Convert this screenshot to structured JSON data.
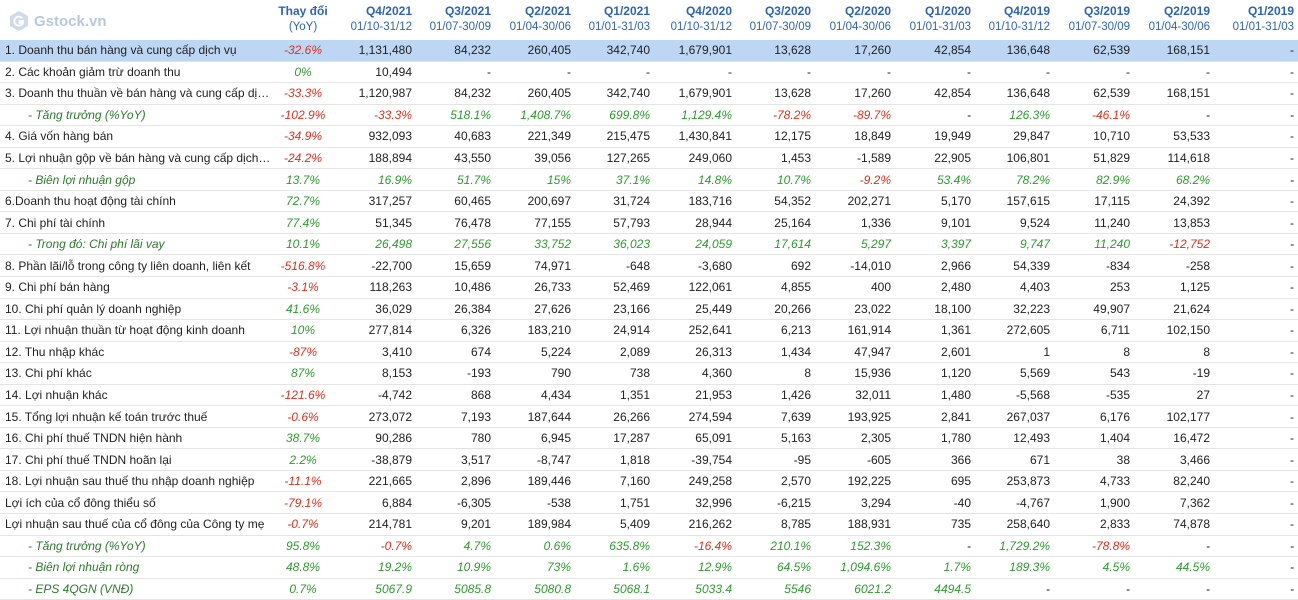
{
  "app": {
    "logo_text": "Gstock.vn"
  },
  "columns": [
    {
      "q": "Thay đổi",
      "d": "(YoY)"
    },
    {
      "q": "Q4/2021",
      "d": "01/10-31/12"
    },
    {
      "q": "Q3/2021",
      "d": "01/07-30/09"
    },
    {
      "q": "Q2/2021",
      "d": "01/04-30/06"
    },
    {
      "q": "Q1/2021",
      "d": "01/01-31/03"
    },
    {
      "q": "Q4/2020",
      "d": "01/10-31/12"
    },
    {
      "q": "Q3/2020",
      "d": "01/07-30/09"
    },
    {
      "q": "Q2/2020",
      "d": "01/04-30/06"
    },
    {
      "q": "Q1/2020",
      "d": "01/01-31/03"
    },
    {
      "q": "Q4/2019",
      "d": "01/10-31/12"
    },
    {
      "q": "Q3/2019",
      "d": "01/07-30/09"
    },
    {
      "q": "Q2/2019",
      "d": "01/04-30/06"
    },
    {
      "q": "Q1/2019",
      "d": "01/01-31/03"
    }
  ],
  "rows": [
    {
      "label": "1. Doanh thu bán hàng và cung cấp dịch vụ",
      "sub": false,
      "selected": true,
      "yoy": "-32.6%",
      "values": [
        "1,131,480",
        "84,232",
        "260,405",
        "342,740",
        "1,679,901",
        "13,628",
        "17,260",
        "42,854",
        "136,648",
        "62,539",
        "168,151",
        "-"
      ]
    },
    {
      "label": "2. Các khoản giảm trừ doanh thu",
      "sub": false,
      "yoy": "0%",
      "values": [
        "10,494",
        "-",
        "-",
        "-",
        "-",
        "-",
        "-",
        "-",
        "-",
        "-",
        "-",
        "-"
      ]
    },
    {
      "label": "3. Doanh thu thuần về bán hàng và cung cấp dịch vụ",
      "sub": false,
      "yoy": "-33.3%",
      "values": [
        "1,120,987",
        "84,232",
        "260,405",
        "342,740",
        "1,679,901",
        "13,628",
        "17,260",
        "42,854",
        "136,648",
        "62,539",
        "168,151",
        "-"
      ]
    },
    {
      "label": "- Tăng trưởng (%YoY)",
      "sub": true,
      "yoy": "-102.9%",
      "values": [
        "-33.3%",
        "518.1%",
        "1,408.7%",
        "699.8%",
        "1,129.4%",
        "-78.2%",
        "-89.7%",
        "-",
        "126.3%",
        "-46.1%",
        "-",
        "-"
      ]
    },
    {
      "label": "4. Giá vốn hàng bán",
      "sub": false,
      "yoy": "-34.9%",
      "values": [
        "932,093",
        "40,683",
        "221,349",
        "215,475",
        "1,430,841",
        "12,175",
        "18,849",
        "19,949",
        "29,847",
        "10,710",
        "53,533",
        "-"
      ]
    },
    {
      "label": "5. Lợi nhuận gộp về bán hàng và cung cấp dịch vụ",
      "sub": false,
      "yoy": "-24.2%",
      "values": [
        "188,894",
        "43,550",
        "39,056",
        "127,265",
        "249,060",
        "1,453",
        "-1,589",
        "22,905",
        "106,801",
        "51,829",
        "114,618",
        "-"
      ]
    },
    {
      "label": "- Biên lợi nhuận gộp",
      "sub": true,
      "yoy": "13.7%",
      "values": [
        "16.9%",
        "51.7%",
        "15%",
        "37.1%",
        "14.8%",
        "10.7%",
        "-9.2%",
        "53.4%",
        "78.2%",
        "82.9%",
        "68.2%",
        "-"
      ]
    },
    {
      "label": "6.Doanh thu hoạt động tài chính",
      "sub": false,
      "yoy": "72.7%",
      "values": [
        "317,257",
        "60,465",
        "200,697",
        "31,724",
        "183,716",
        "54,352",
        "202,271",
        "5,170",
        "157,615",
        "17,115",
        "24,392",
        "-"
      ]
    },
    {
      "label": "7. Chi phí tài chính",
      "sub": false,
      "yoy": "77.4%",
      "values": [
        "51,345",
        "76,478",
        "77,155",
        "57,793",
        "28,944",
        "25,164",
        "1,336",
        "9,101",
        "9,524",
        "11,240",
        "13,853",
        "-"
      ]
    },
    {
      "label": "- Trong đó: Chi phí lãi vay",
      "sub": true,
      "yoy": "10.1%",
      "values": [
        "26,498",
        "27,556",
        "33,752",
        "36,023",
        "24,059",
        "17,614",
        "5,297",
        "3,397",
        "9,747",
        "11,240",
        "-12,752",
        "-"
      ]
    },
    {
      "label": "8. Phần lãi/lỗ trong công ty liên doanh, liên kết",
      "sub": false,
      "yoy": "-516.8%",
      "values": [
        "-22,700",
        "15,659",
        "74,971",
        "-648",
        "-3,680",
        "692",
        "-14,010",
        "2,966",
        "54,339",
        "-834",
        "-258",
        "-"
      ]
    },
    {
      "label": "9. Chi phí bán hàng",
      "sub": false,
      "yoy": "-3.1%",
      "values": [
        "118,263",
        "10,486",
        "26,733",
        "52,469",
        "122,061",
        "4,855",
        "400",
        "2,480",
        "4,403",
        "253",
        "1,125",
        "-"
      ]
    },
    {
      "label": "10. Chi phí quản lý doanh nghiệp",
      "sub": false,
      "yoy": "41.6%",
      "values": [
        "36,029",
        "26,384",
        "27,626",
        "23,166",
        "25,449",
        "20,266",
        "23,022",
        "18,100",
        "32,223",
        "49,907",
        "21,624",
        "-"
      ]
    },
    {
      "label": "11. Lợi nhuận thuần từ hoạt động kinh doanh",
      "sub": false,
      "yoy": "10%",
      "values": [
        "277,814",
        "6,326",
        "183,210",
        "24,914",
        "252,641",
        "6,213",
        "161,914",
        "1,361",
        "272,605",
        "6,711",
        "102,150",
        "-"
      ]
    },
    {
      "label": "12. Thu nhập khác",
      "sub": false,
      "yoy": "-87%",
      "values": [
        "3,410",
        "674",
        "5,224",
        "2,089",
        "26,313",
        "1,434",
        "47,947",
        "2,601",
        "1",
        "8",
        "8",
        "-"
      ]
    },
    {
      "label": "13. Chi phí khác",
      "sub": false,
      "yoy": "87%",
      "values": [
        "8,153",
        "-193",
        "790",
        "738",
        "4,360",
        "8",
        "15,936",
        "1,120",
        "5,569",
        "543",
        "-19",
        "-"
      ]
    },
    {
      "label": "14. Lợi nhuận khác",
      "sub": false,
      "yoy": "-121.6%",
      "values": [
        "-4,742",
        "868",
        "4,434",
        "1,351",
        "21,953",
        "1,426",
        "32,011",
        "1,480",
        "-5,568",
        "-535",
        "27",
        "-"
      ]
    },
    {
      "label": "15. Tổng lợi nhuận kế toán trước thuế",
      "sub": false,
      "yoy": "-0.6%",
      "values": [
        "273,072",
        "7,193",
        "187,644",
        "26,266",
        "274,594",
        "7,639",
        "193,925",
        "2,841",
        "267,037",
        "6,176",
        "102,177",
        "-"
      ]
    },
    {
      "label": "16. Chi phí thuế TNDN hiện hành",
      "sub": false,
      "yoy": "38.7%",
      "values": [
        "90,286",
        "780",
        "6,945",
        "17,287",
        "65,091",
        "5,163",
        "2,305",
        "1,780",
        "12,493",
        "1,404",
        "16,472",
        "-"
      ]
    },
    {
      "label": "17. Chi phí thuế TNDN hoãn lại",
      "sub": false,
      "yoy": "2.2%",
      "values": [
        "-38,879",
        "3,517",
        "-8,747",
        "1,818",
        "-39,754",
        "-95",
        "-605",
        "366",
        "671",
        "38",
        "3,466",
        "-"
      ]
    },
    {
      "label": "18. Lợi nhuận sau thuế thu nhập doanh nghiệp",
      "sub": false,
      "yoy": "-11.1%",
      "values": [
        "221,665",
        "2,896",
        "189,446",
        "7,160",
        "249,258",
        "2,570",
        "192,225",
        "695",
        "253,873",
        "4,733",
        "82,240",
        "-"
      ]
    },
    {
      "label": "Lợi ích của cổ đông thiểu số",
      "sub": false,
      "yoy": "-79.1%",
      "values": [
        "6,884",
        "-6,305",
        "-538",
        "1,751",
        "32,996",
        "-6,215",
        "3,294",
        "-40",
        "-4,767",
        "1,900",
        "7,362",
        "-"
      ]
    },
    {
      "label": "Lợi nhuận sau thuế của cổ đông của Công ty mẹ",
      "sub": false,
      "yoy": "-0.7%",
      "values": [
        "214,781",
        "9,201",
        "189,984",
        "5,409",
        "216,262",
        "8,785",
        "188,931",
        "735",
        "258,640",
        "2,833",
        "74,878",
        "-"
      ]
    },
    {
      "label": "- Tăng trưởng (%YoY)",
      "sub": true,
      "yoy": "95.8%",
      "values": [
        "-0.7%",
        "4.7%",
        "0.6%",
        "635.8%",
        "-16.4%",
        "210.1%",
        "152.3%",
        "-",
        "1,729.2%",
        "-78.8%",
        "-",
        "-"
      ]
    },
    {
      "label": "- Biên lợi nhuận ròng",
      "sub": true,
      "yoy": "48.8%",
      "values": [
        "19.2%",
        "10.9%",
        "73%",
        "1.6%",
        "12.9%",
        "64.5%",
        "1,094.6%",
        "1.7%",
        "189.3%",
        "4.5%",
        "44.5%",
        "-"
      ]
    },
    {
      "label": "- EPS 4QGN (VNĐ)",
      "sub": true,
      "yoy": "0.7%",
      "values": [
        "5067.9",
        "5085.8",
        "5080.8",
        "5068.1",
        "5033.4",
        "5546",
        "6021.2",
        "4494.5",
        "-",
        "-",
        "-",
        "-"
      ]
    }
  ],
  "colors": {
    "header": "#2f64b4",
    "positive": "#2f9a2f",
    "negative": "#e0301e",
    "selected_row": "#bcd6f4"
  }
}
